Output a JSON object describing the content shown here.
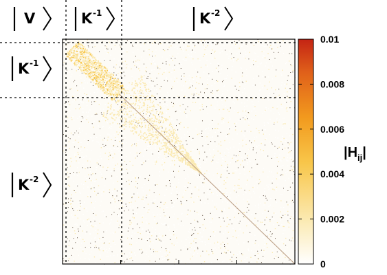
{
  "chart_data": {
    "type": "heatmap",
    "title": "",
    "xlabel": "",
    "ylabel": "",
    "colorbar": {
      "label_main": "|H",
      "label_sub": "ij",
      "label_end": "|",
      "range": [
        0,
        0.01
      ],
      "ticks": [
        "0",
        "0.002",
        "0.004",
        "0.006",
        "0.008",
        "0.01"
      ],
      "colors": [
        "#ffffff",
        "#fbe9b0",
        "#f8c64a",
        "#f29a1e",
        "#e0611a",
        "#c42414"
      ]
    },
    "blocks": {
      "top": [
        {
          "ket": "V",
          "sup": ""
        },
        {
          "ket": "K",
          "sup": "-1"
        },
        {
          "ket": "K",
          "sup": "-2"
        }
      ],
      "left": [
        {
          "ket": "K",
          "sup": "-1"
        },
        {
          "ket": "K",
          "sup": "-2"
        }
      ],
      "boundaries_fraction": [
        0.0,
        0.037,
        0.245,
        1.0
      ]
    },
    "matrix_description_values": {
      "diagonal_typical": 0.002,
      "block_V_K1_typical": 0.0025,
      "block_K1_K2_typical": 0.002,
      "background_typical": 0.0005
    },
    "grid": false
  }
}
